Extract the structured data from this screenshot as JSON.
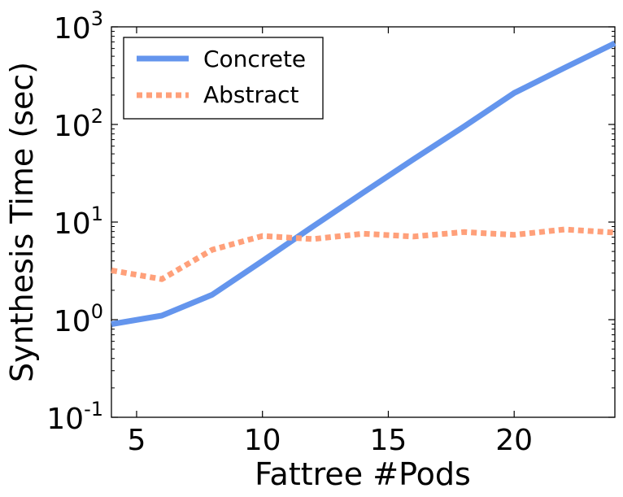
{
  "chart_data": {
    "type": "line",
    "xlabel": "Fattree #Pods",
    "ylabel": "Synthesis Time (sec)",
    "xlim": [
      4,
      24
    ],
    "ylim": [
      0.1,
      1000
    ],
    "yscale": "log",
    "x_ticks": [
      5,
      10,
      15,
      20
    ],
    "y_ticks": [
      {
        "value": 0.1,
        "base": "10",
        "exp": "-1"
      },
      {
        "value": 1,
        "base": "10",
        "exp": "0"
      },
      {
        "value": 10,
        "base": "10",
        "exp": "1"
      },
      {
        "value": 100,
        "base": "10",
        "exp": "2"
      },
      {
        "value": 1000,
        "base": "10",
        "exp": "3"
      }
    ],
    "grid": false,
    "legend_position": "top-left",
    "series": [
      {
        "name": "Concrete",
        "color": "#6495ed",
        "style": "solid",
        "x": [
          4,
          6,
          8,
          10,
          12,
          14,
          16,
          18,
          20,
          22,
          24
        ],
        "y": [
          0.9,
          1.1,
          1.8,
          4.0,
          9.0,
          20,
          44,
          95,
          210,
          380,
          680
        ]
      },
      {
        "name": "Abstract",
        "color": "#ffa07a",
        "style": "dotted",
        "x": [
          4,
          6,
          8,
          10,
          12,
          14,
          16,
          18,
          20,
          22,
          24
        ],
        "y": [
          3.2,
          2.6,
          5.2,
          7.2,
          6.7,
          7.6,
          7.1,
          7.9,
          7.4,
          8.4,
          7.8
        ]
      }
    ]
  }
}
